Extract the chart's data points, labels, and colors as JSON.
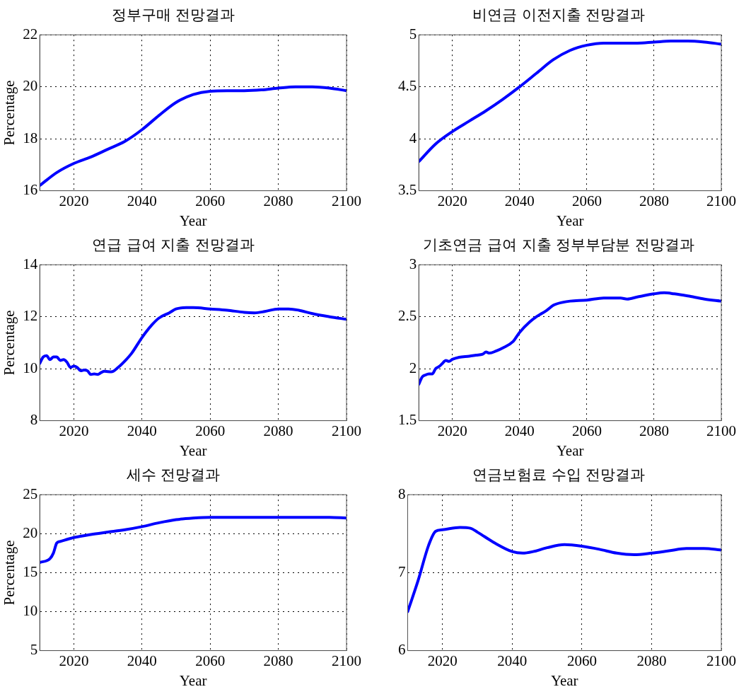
{
  "chart_data": [
    {
      "type": "line",
      "title": "정부구매 전망결과",
      "xlabel": "Year",
      "ylabel": "Percentage",
      "xlim": [
        2010,
        2100
      ],
      "xticks": [
        2020,
        2040,
        2060,
        2080,
        2100
      ],
      "ylim": [
        16,
        22
      ],
      "yticks": [
        16,
        18,
        20,
        22
      ],
      "grid": true,
      "marker": "none",
      "line_style": "solid",
      "x": [
        2010,
        2015,
        2020,
        2025,
        2030,
        2035,
        2040,
        2045,
        2050,
        2055,
        2060,
        2065,
        2070,
        2075,
        2080,
        2085,
        2090,
        2095,
        2100
      ],
      "series": [
        {
          "color": "#0000ff",
          "values": [
            16.2,
            16.7,
            17.05,
            17.3,
            17.6,
            17.9,
            18.35,
            18.9,
            19.4,
            19.7,
            19.83,
            19.85,
            19.85,
            19.88,
            19.95,
            20.0,
            20.0,
            19.95,
            19.85
          ]
        }
      ]
    },
    {
      "type": "line",
      "title": "비연금 이전지출 전망결과",
      "xlabel": "Year",
      "xlim": [
        2010,
        2100
      ],
      "xticks": [
        2020,
        2040,
        2060,
        2080,
        2100
      ],
      "ylim": [
        3.5,
        5
      ],
      "yticks": [
        3.5,
        4,
        4.5,
        5
      ],
      "grid": true,
      "marker": "none",
      "line_style": "solid",
      "x": [
        2010,
        2015,
        2020,
        2025,
        2030,
        2035,
        2040,
        2045,
        2050,
        2055,
        2060,
        2065,
        2070,
        2075,
        2080,
        2085,
        2090,
        2095,
        2100
      ],
      "series": [
        {
          "color": "#0000ff",
          "values": [
            3.78,
            3.95,
            4.07,
            4.17,
            4.27,
            4.38,
            4.5,
            4.63,
            4.76,
            4.85,
            4.9,
            4.92,
            4.92,
            4.92,
            4.93,
            4.94,
            4.94,
            4.93,
            4.91
          ]
        }
      ]
    },
    {
      "type": "line",
      "title": "연급 급여 지출 전망결과",
      "xlabel": "Year",
      "ylabel": "Percentage",
      "xlim": [
        2010,
        2100
      ],
      "xticks": [
        2020,
        2040,
        2060,
        2080,
        2100
      ],
      "ylim": [
        8,
        14
      ],
      "yticks": [
        8,
        10,
        12,
        14
      ],
      "grid": true,
      "marker": "none",
      "line_style": "solid",
      "x": [
        2010,
        2011,
        2012,
        2013,
        2014,
        2015,
        2016,
        2017,
        2018,
        2019,
        2020,
        2021,
        2022,
        2023,
        2024,
        2025,
        2026,
        2027,
        2028,
        2029,
        2031,
        2033,
        2035,
        2037,
        2040,
        2043,
        2045,
        2048,
        2050,
        2053,
        2055,
        2060,
        2065,
        2070,
        2073,
        2076,
        2080,
        2083,
        2086,
        2090,
        2095,
        2100
      ],
      "series": [
        {
          "color": "#0000ff",
          "values": [
            10.2,
            10.45,
            10.5,
            10.35,
            10.45,
            10.45,
            10.32,
            10.35,
            10.25,
            10.05,
            10.1,
            10.05,
            9.92,
            9.95,
            9.92,
            9.78,
            9.8,
            9.78,
            9.85,
            9.9,
            9.88,
            10.05,
            10.3,
            10.6,
            11.2,
            11.7,
            11.95,
            12.15,
            12.3,
            12.35,
            12.35,
            12.3,
            12.25,
            12.17,
            12.15,
            12.2,
            12.3,
            12.3,
            12.25,
            12.12,
            12.0,
            11.9
          ]
        }
      ]
    },
    {
      "type": "line",
      "title": "기초연금 급여 지출 정부부담분 전망결과",
      "xlabel": "Year",
      "xlim": [
        2010,
        2100
      ],
      "xticks": [
        2020,
        2040,
        2060,
        2080,
        2100
      ],
      "ylim": [
        1.5,
        3
      ],
      "yticks": [
        1.5,
        2,
        2.5,
        3
      ],
      "grid": true,
      "marker": "none",
      "line_style": "solid",
      "x": [
        2010,
        2011,
        2012,
        2013,
        2014,
        2015,
        2016,
        2017,
        2018,
        2019,
        2020,
        2022,
        2025,
        2027,
        2029,
        2030,
        2031,
        2033,
        2035,
        2038,
        2040,
        2043,
        2045,
        2048,
        2050,
        2053,
        2055,
        2060,
        2065,
        2070,
        2072,
        2075,
        2080,
        2083,
        2086,
        2090,
        2095,
        2100
      ],
      "series": [
        {
          "color": "#0000ff",
          "values": [
            1.85,
            1.92,
            1.94,
            1.95,
            1.95,
            2.0,
            2.02,
            2.05,
            2.08,
            2.07,
            2.09,
            2.11,
            2.12,
            2.13,
            2.14,
            2.16,
            2.15,
            2.17,
            2.2,
            2.26,
            2.35,
            2.45,
            2.5,
            2.56,
            2.61,
            2.64,
            2.65,
            2.66,
            2.68,
            2.68,
            2.67,
            2.69,
            2.72,
            2.73,
            2.72,
            2.7,
            2.67,
            2.65
          ]
        }
      ]
    },
    {
      "type": "line",
      "title": "세수 전망결과",
      "xlabel": "Year",
      "ylabel": "Percentage",
      "xlim": [
        2010,
        2100
      ],
      "xticks": [
        2020,
        2040,
        2060,
        2080,
        2100
      ],
      "ylim": [
        5,
        25
      ],
      "yticks": [
        5,
        10,
        15,
        20,
        25
      ],
      "grid": true,
      "marker": "none",
      "line_style": "solid",
      "x": [
        2010,
        2013,
        2014,
        2015,
        2016,
        2020,
        2025,
        2030,
        2035,
        2040,
        2045,
        2050,
        2055,
        2060,
        2070,
        2080,
        2090,
        2095,
        2100
      ],
      "series": [
        {
          "color": "#0000ff",
          "values": [
            16.3,
            16.8,
            17.5,
            18.8,
            19.0,
            19.5,
            19.9,
            20.2,
            20.5,
            20.9,
            21.4,
            21.8,
            22.0,
            22.1,
            22.1,
            22.1,
            22.1,
            22.1,
            22.0
          ]
        }
      ]
    },
    {
      "type": "line",
      "title": "연금보험료 수입 전망결과",
      "xlabel": "Year",
      "xlim": [
        2010,
        2100
      ],
      "xticks": [
        2020,
        2040,
        2060,
        2080,
        2100
      ],
      "ylim": [
        6,
        8
      ],
      "yticks": [
        6,
        7,
        8
      ],
      "grid": true,
      "marker": "none",
      "line_style": "solid",
      "x": [
        2010,
        2013,
        2016,
        2018,
        2020,
        2025,
        2028,
        2030,
        2035,
        2040,
        2043,
        2046,
        2050,
        2055,
        2060,
        2065,
        2070,
        2075,
        2080,
        2085,
        2090,
        2095,
        2100
      ],
      "series": [
        {
          "color": "#0000ff",
          "values": [
            6.5,
            6.9,
            7.35,
            7.53,
            7.55,
            7.58,
            7.57,
            7.52,
            7.38,
            7.27,
            7.25,
            7.27,
            7.32,
            7.36,
            7.34,
            7.3,
            7.25,
            7.23,
            7.25,
            7.28,
            7.31,
            7.31,
            7.29
          ]
        }
      ]
    }
  ]
}
